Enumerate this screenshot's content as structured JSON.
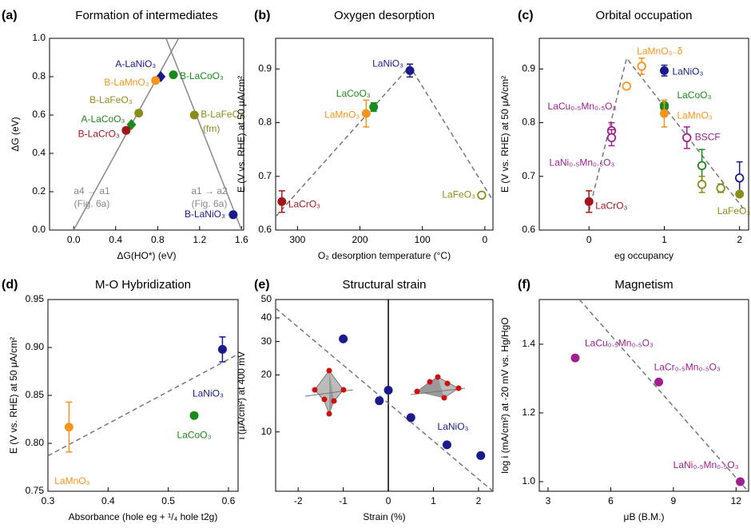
{
  "chart_data": [
    {
      "type": "scatter",
      "panel": "(a)",
      "title": "Formation of intermediates",
      "xlabel": "ΔG(HO*) (eV)",
      "ylabel": "ΔG (eV)",
      "xlim": [
        -0.23,
        1.62
      ],
      "ylim": [
        0,
        1
      ],
      "xticks": [
        {
          "value": 0,
          "label": "0.0"
        },
        0.4,
        0.8,
        1.2,
        1.6
      ],
      "yticks": [
        {
          "value": 0,
          "label": "0.0"
        },
        0.2,
        0.4,
        0.6,
        0.8,
        {
          "value": 1,
          "label": "1.0"
        }
      ],
      "labels": [
        "A-LaNiO₃",
        "B-LaMnO₃",
        "B-LaCoO₃",
        "B-LaFeO₃",
        "A-LaCoO₃",
        "B-LaCrO₃",
        "B-LaFeO₃",
        "B-LaNiO₃"
      ],
      "x": [
        0.83,
        0.78,
        0.95,
        0.62,
        0.55,
        0.5,
        1.15,
        1.52
      ],
      "values": [
        0.8,
        0.78,
        0.81,
        0.61,
        0.55,
        0.52,
        0.6,
        0.08
      ],
      "colors": [
        "#1a1a8c",
        "#f7941d",
        "#1a8a1a",
        "#8c8c1a",
        "#1a8a1a",
        "#a3161a",
        "#8c8c1a",
        "#1a1a8c"
      ],
      "markers": [
        "diamond",
        "filled",
        "filled",
        "filled",
        "diamond",
        "filled",
        "filled",
        "filled"
      ],
      "trend_lines": [
        {
          "x": [
            0,
            1
          ],
          "y": [
            0,
            1
          ],
          "style": "solid"
        },
        {
          "x": [
            0.88,
            1.6
          ],
          "y": [
            1,
            0
          ],
          "style": "solid"
        }
      ],
      "annotations": [
        "a4 → a1",
        "(Fig. 6a)",
        "a1 → a2",
        "(Fig. 6a)",
        "(fm)"
      ]
    },
    {
      "type": "scatter",
      "panel": "(b)",
      "title": "Oxygen desorption",
      "xlabel": "O₂ desorption temperature (°C)",
      "ylabel": "E (V vs. RHE) at 50 μA/cm²",
      "xlim": [
        335,
        -13
      ],
      "ylim": [
        0.6,
        0.957
      ],
      "xticks": [
        300,
        200,
        100,
        0
      ],
      "yticks": [
        0.6,
        0.7,
        0.8,
        0.9
      ],
      "labels": [
        "LaCrO₃",
        "LaMnO₃",
        "LaCoO₃",
        "LaNiO₃",
        "LaFeO₃"
      ],
      "x": [
        325,
        190,
        178,
        120,
        5
      ],
      "values": [
        0.653,
        0.817,
        0.829,
        0.897,
        0.665
      ],
      "errors": [
        0.02,
        0.025,
        0.008,
        0.012,
        null
      ],
      "colors": [
        "#a3161a",
        "#f7941d",
        "#1a8a1a",
        "#1a1a8c",
        "#8c8c1a"
      ],
      "markers": [
        "filled",
        "filled",
        "filled",
        "filled",
        "open"
      ],
      "trend_lines": [
        {
          "x": [
            335,
            120,
            -13
          ],
          "y": [
            0.625,
            0.905,
            0.655
          ],
          "style": "dashed"
        }
      ]
    },
    {
      "type": "scatter",
      "panel": "(c)",
      "title": "Orbital occupation",
      "xlabel": "eg occupancy",
      "ylabel": "E (V vs. RHE) at 50 μA/cm²",
      "xlim": [
        -0.66,
        2.12
      ],
      "ylim": [
        0.6,
        0.957
      ],
      "xticks": [
        0,
        1,
        2
      ],
      "yticks": [
        0.6,
        0.7,
        0.8,
        0.9
      ],
      "labels": [
        "LaCrO₃",
        "LaCu₀.₅Mn₀.₅O₃",
        "LaNi₀.₅Mn₀.₅O₃",
        null,
        "LaMnO₃₋δ",
        "LaNiO₃",
        null,
        "LaCoO₃",
        "LaMnO₃",
        "BSCF",
        null,
        null,
        null,
        null,
        "LaFeO₃"
      ],
      "x": [
        0,
        0.3,
        0.3,
        0.5,
        0.7,
        1,
        1,
        1,
        1,
        1.3,
        1.5,
        1.5,
        1.75,
        2,
        2
      ],
      "values": [
        0.653,
        0.785,
        0.772,
        0.868,
        0.905,
        0.897,
        0.832,
        0.829,
        0.817,
        0.772,
        0.72,
        0.685,
        0.678,
        0.697,
        0.667
      ],
      "errors": [
        0.02,
        0.015,
        0.015,
        null,
        0.015,
        0.01,
        null,
        null,
        0.025,
        0.02,
        0.03,
        0.015,
        0.008,
        0.03,
        null
      ],
      "colors": [
        "#a3161a",
        "#a0208f",
        "#a0208f",
        "#f7941d",
        "#f7941d",
        "#1a1a8c",
        "#1a8a1a",
        "#1a8a1a",
        "#f7941d",
        "#a0208f",
        "#1a8a1a",
        "#8c8c1a",
        "#8c8c1a",
        "#1a1a8c",
        "#8c8c1a"
      ],
      "markers": [
        "filled",
        "open",
        "open",
        "open",
        "open",
        "filled",
        "open",
        "filled",
        "filled",
        "open",
        "open",
        "open",
        "open",
        "open",
        "filled"
      ],
      "trend_lines": [
        {
          "x": [
            0,
            0.5,
            2.05
          ],
          "y": [
            0.635,
            0.92,
            0.64
          ],
          "style": "dashed"
        }
      ]
    },
    {
      "type": "scatter",
      "panel": "(d)",
      "title": "M-O Hybridization",
      "xlabel": "Absorbance (hole eg + ¹/₄ hole t2g)",
      "ylabel": "E (V vs. RHE) at 50 μA/cm²",
      "xlim": [
        0.3,
        0.616
      ],
      "ylim": [
        0.75,
        0.95
      ],
      "xticks": [
        0.3,
        0.4,
        0.5,
        0.6
      ],
      "yticks": [
        0.75,
        {
          "value": 0.8,
          "label": "0.80"
        },
        0.85,
        {
          "value": 0.9,
          "label": "0.90"
        },
        0.95
      ],
      "labels": [
        "LaMnO₃",
        "LaCoO₃",
        "LaNiO₃"
      ],
      "x": [
        0.335,
        0.543,
        0.59
      ],
      "values": [
        0.817,
        0.829,
        0.898
      ],
      "errors": [
        0.026,
        null,
        0.013
      ],
      "colors": [
        "#f7941d",
        "#1a8a1a",
        "#1a1a8c"
      ],
      "markers": [
        "filled",
        "filled",
        "filled"
      ],
      "trend_lines": [
        {
          "x": [
            0.3,
            0.616
          ],
          "y": [
            0.787,
            0.893
          ],
          "style": "dashed"
        }
      ]
    },
    {
      "type": "scatter",
      "panel": "(e)",
      "title": "Structural strain",
      "xlabel": "Strain (%)",
      "ylabel": "i (μA/cm²) at 400 mV",
      "xlim": [
        -2.5,
        2.32
      ],
      "ylim": [
        4.86,
        50
      ],
      "log_y": true,
      "xticks": [
        -2,
        -1,
        0,
        1,
        2
      ],
      "yticks": [
        10,
        20,
        30,
        40,
        50
      ],
      "x": [
        -1,
        -0.2,
        0,
        0.5,
        1.3,
        2.05
      ],
      "values": [
        31,
        14.6,
        16.6,
        11.9,
        8.55,
        7.5
      ],
      "colors": [
        "#1a1a8c",
        "#1a1a8c",
        "#1a1a8c",
        "#1a1a8c",
        "#1a1a8c",
        "#1a1a8c"
      ],
      "markers": [
        "filled",
        "filled",
        "filled",
        "filled",
        "filled",
        "filled"
      ],
      "vlines": [
        0
      ],
      "trend_lines": [
        {
          "x": [
            -2.5,
            2.32
          ],
          "y": [
            45,
            4.86
          ],
          "style": "dashed"
        }
      ],
      "annotations": [
        "LaNiO₃"
      ]
    },
    {
      "type": "scatter",
      "panel": "(f)",
      "title": "Magnetism",
      "xlabel": "μB (B.M.)",
      "ylabel": "log i (mA/cm²) at -20 mV vs. Hg/HgO",
      "xlim": [
        2.58,
        12.6
      ],
      "ylim": [
        0.972,
        1.53
      ],
      "xticks": [
        3,
        6,
        9,
        12
      ],
      "yticks": [
        {
          "value": 1,
          "label": "1.0"
        },
        1.2,
        1.4
      ],
      "labels": [
        "LaCu₀.₅Mn₀.₅O₃",
        "LaCr₀.₅Mn₀.₅O₃",
        "LaNi₀.₅Mn₀.₅O₃"
      ],
      "x": [
        4.3,
        8.3,
        12.2
      ],
      "values": [
        1.36,
        1.29,
        1.0
      ],
      "colors": [
        "#a0208f",
        "#a0208f",
        "#a0208f"
      ],
      "markers": [
        "filled",
        "filled",
        "filled"
      ],
      "trend_lines": [
        {
          "x": [
            4.5,
            12.6
          ],
          "y": [
            1.53,
            0.97
          ],
          "style": "dashed"
        }
      ]
    }
  ]
}
